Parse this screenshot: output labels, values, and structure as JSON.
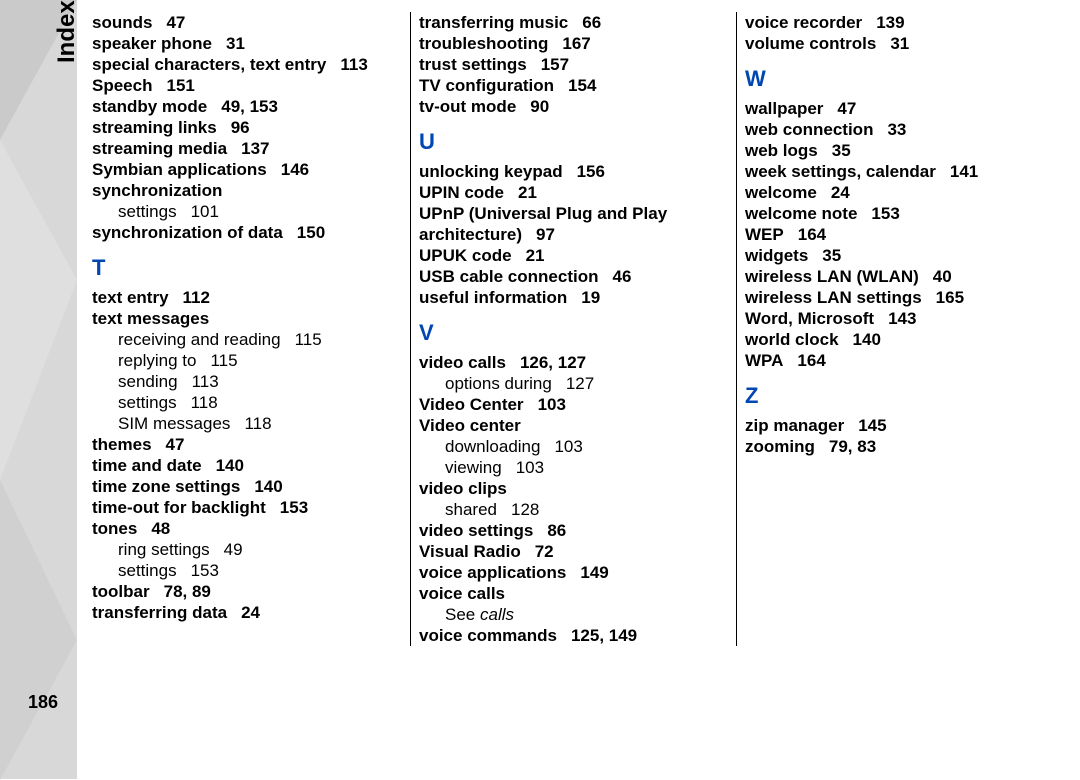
{
  "side_title": "Index",
  "page_number": "186",
  "col1": [
    {
      "t": "term",
      "label": "sounds",
      "pages": "47"
    },
    {
      "t": "term",
      "label": "speaker phone",
      "pages": "31"
    },
    {
      "t": "term",
      "label": "special characters, text entry",
      "pages": "113"
    },
    {
      "t": "term",
      "label": "Speech",
      "pages": "151"
    },
    {
      "t": "term",
      "label": "standby mode",
      "pages": "49, 153"
    },
    {
      "t": "term",
      "label": "streaming links",
      "pages": "96"
    },
    {
      "t": "term",
      "label": "streaming media",
      "pages": "137"
    },
    {
      "t": "term",
      "label": "Symbian applications",
      "pages": "146"
    },
    {
      "t": "term",
      "label": "synchronization",
      "pages": ""
    },
    {
      "t": "sub",
      "label": "settings",
      "pages": "101"
    },
    {
      "t": "term",
      "label": "synchronization of data",
      "pages": "150"
    },
    {
      "t": "letter",
      "label": "T"
    },
    {
      "t": "term",
      "label": "text entry",
      "pages": "112"
    },
    {
      "t": "term",
      "label": "text messages",
      "pages": ""
    },
    {
      "t": "sub",
      "label": "receiving and reading",
      "pages": "115"
    },
    {
      "t": "sub",
      "label": "replying to",
      "pages": "115"
    },
    {
      "t": "sub",
      "label": "sending",
      "pages": "113"
    },
    {
      "t": "sub",
      "label": "settings",
      "pages": "118"
    },
    {
      "t": "sub",
      "label": "SIM messages",
      "pages": "118"
    },
    {
      "t": "term",
      "label": "themes",
      "pages": "47"
    },
    {
      "t": "term",
      "label": "time and date",
      "pages": "140"
    },
    {
      "t": "term",
      "label": "time zone settings",
      "pages": "140"
    },
    {
      "t": "term",
      "label": "time-out for backlight",
      "pages": "153"
    },
    {
      "t": "term",
      "label": "tones",
      "pages": "48"
    },
    {
      "t": "sub",
      "label": "ring settings",
      "pages": "49"
    },
    {
      "t": "sub",
      "label": "settings",
      "pages": "153"
    },
    {
      "t": "term",
      "label": "toolbar",
      "pages": "78, 89"
    },
    {
      "t": "term",
      "label": "transferring data",
      "pages": "24"
    }
  ],
  "col2": [
    {
      "t": "term",
      "label": "transferring music",
      "pages": "66"
    },
    {
      "t": "term",
      "label": "troubleshooting",
      "pages": "167"
    },
    {
      "t": "term",
      "label": "trust settings",
      "pages": "157"
    },
    {
      "t": "term",
      "label": "TV configuration",
      "pages": "154"
    },
    {
      "t": "term",
      "label": "tv-out mode",
      "pages": "90"
    },
    {
      "t": "letter",
      "label": "U"
    },
    {
      "t": "term",
      "label": "unlocking keypad",
      "pages": "156"
    },
    {
      "t": "term",
      "label": "UPIN code",
      "pages": "21"
    },
    {
      "t": "term",
      "label": "UPnP (Universal Plug and Play architecture)",
      "pages": "97"
    },
    {
      "t": "term",
      "label": "UPUK code",
      "pages": "21"
    },
    {
      "t": "term",
      "label": "USB cable connection",
      "pages": "46"
    },
    {
      "t": "term",
      "label": "useful information",
      "pages": "19"
    },
    {
      "t": "letter",
      "label": "V"
    },
    {
      "t": "term",
      "label": "video calls",
      "pages": "126, 127"
    },
    {
      "t": "sub",
      "label": "options during",
      "pages": "127"
    },
    {
      "t": "term",
      "label": "Video Center",
      "pages": "103"
    },
    {
      "t": "term",
      "label": "Video center",
      "pages": ""
    },
    {
      "t": "sub",
      "label": "downloading",
      "pages": "103"
    },
    {
      "t": "sub",
      "label": "viewing",
      "pages": "103"
    },
    {
      "t": "term",
      "label": "video clips",
      "pages": ""
    },
    {
      "t": "sub",
      "label": "shared",
      "pages": "128"
    },
    {
      "t": "term",
      "label": "video settings",
      "pages": "86"
    },
    {
      "t": "term",
      "label": "Visual Radio",
      "pages": "72"
    },
    {
      "t": "term",
      "label": "voice applications",
      "pages": "149"
    },
    {
      "t": "term",
      "label": "voice calls",
      "pages": ""
    },
    {
      "t": "see",
      "label": "calls"
    },
    {
      "t": "term",
      "label": "voice commands",
      "pages": "125, 149"
    }
  ],
  "col3": [
    {
      "t": "term",
      "label": "voice recorder",
      "pages": "139"
    },
    {
      "t": "term",
      "label": "volume controls",
      "pages": "31"
    },
    {
      "t": "letter",
      "label": "W"
    },
    {
      "t": "term",
      "label": "wallpaper",
      "pages": "47"
    },
    {
      "t": "term",
      "label": "web connection",
      "pages": "33"
    },
    {
      "t": "term",
      "label": "web logs",
      "pages": "35"
    },
    {
      "t": "term",
      "label": "week settings, calendar",
      "pages": "141"
    },
    {
      "t": "term",
      "label": "welcome",
      "pages": "24"
    },
    {
      "t": "term",
      "label": "welcome note",
      "pages": "153"
    },
    {
      "t": "term",
      "label": "WEP",
      "pages": "164"
    },
    {
      "t": "term",
      "label": "widgets",
      "pages": "35"
    },
    {
      "t": "term",
      "label": "wireless LAN (WLAN)",
      "pages": "40"
    },
    {
      "t": "term",
      "label": "wireless LAN settings",
      "pages": "165"
    },
    {
      "t": "term",
      "label": "Word, Microsoft",
      "pages": "143"
    },
    {
      "t": "term",
      "label": "world clock",
      "pages": "140"
    },
    {
      "t": "term",
      "label": "WPA",
      "pages": "164"
    },
    {
      "t": "letter",
      "label": "Z"
    },
    {
      "t": "term",
      "label": "zip manager",
      "pages": "145"
    },
    {
      "t": "term",
      "label": "zooming",
      "pages": "79, 83"
    }
  ]
}
